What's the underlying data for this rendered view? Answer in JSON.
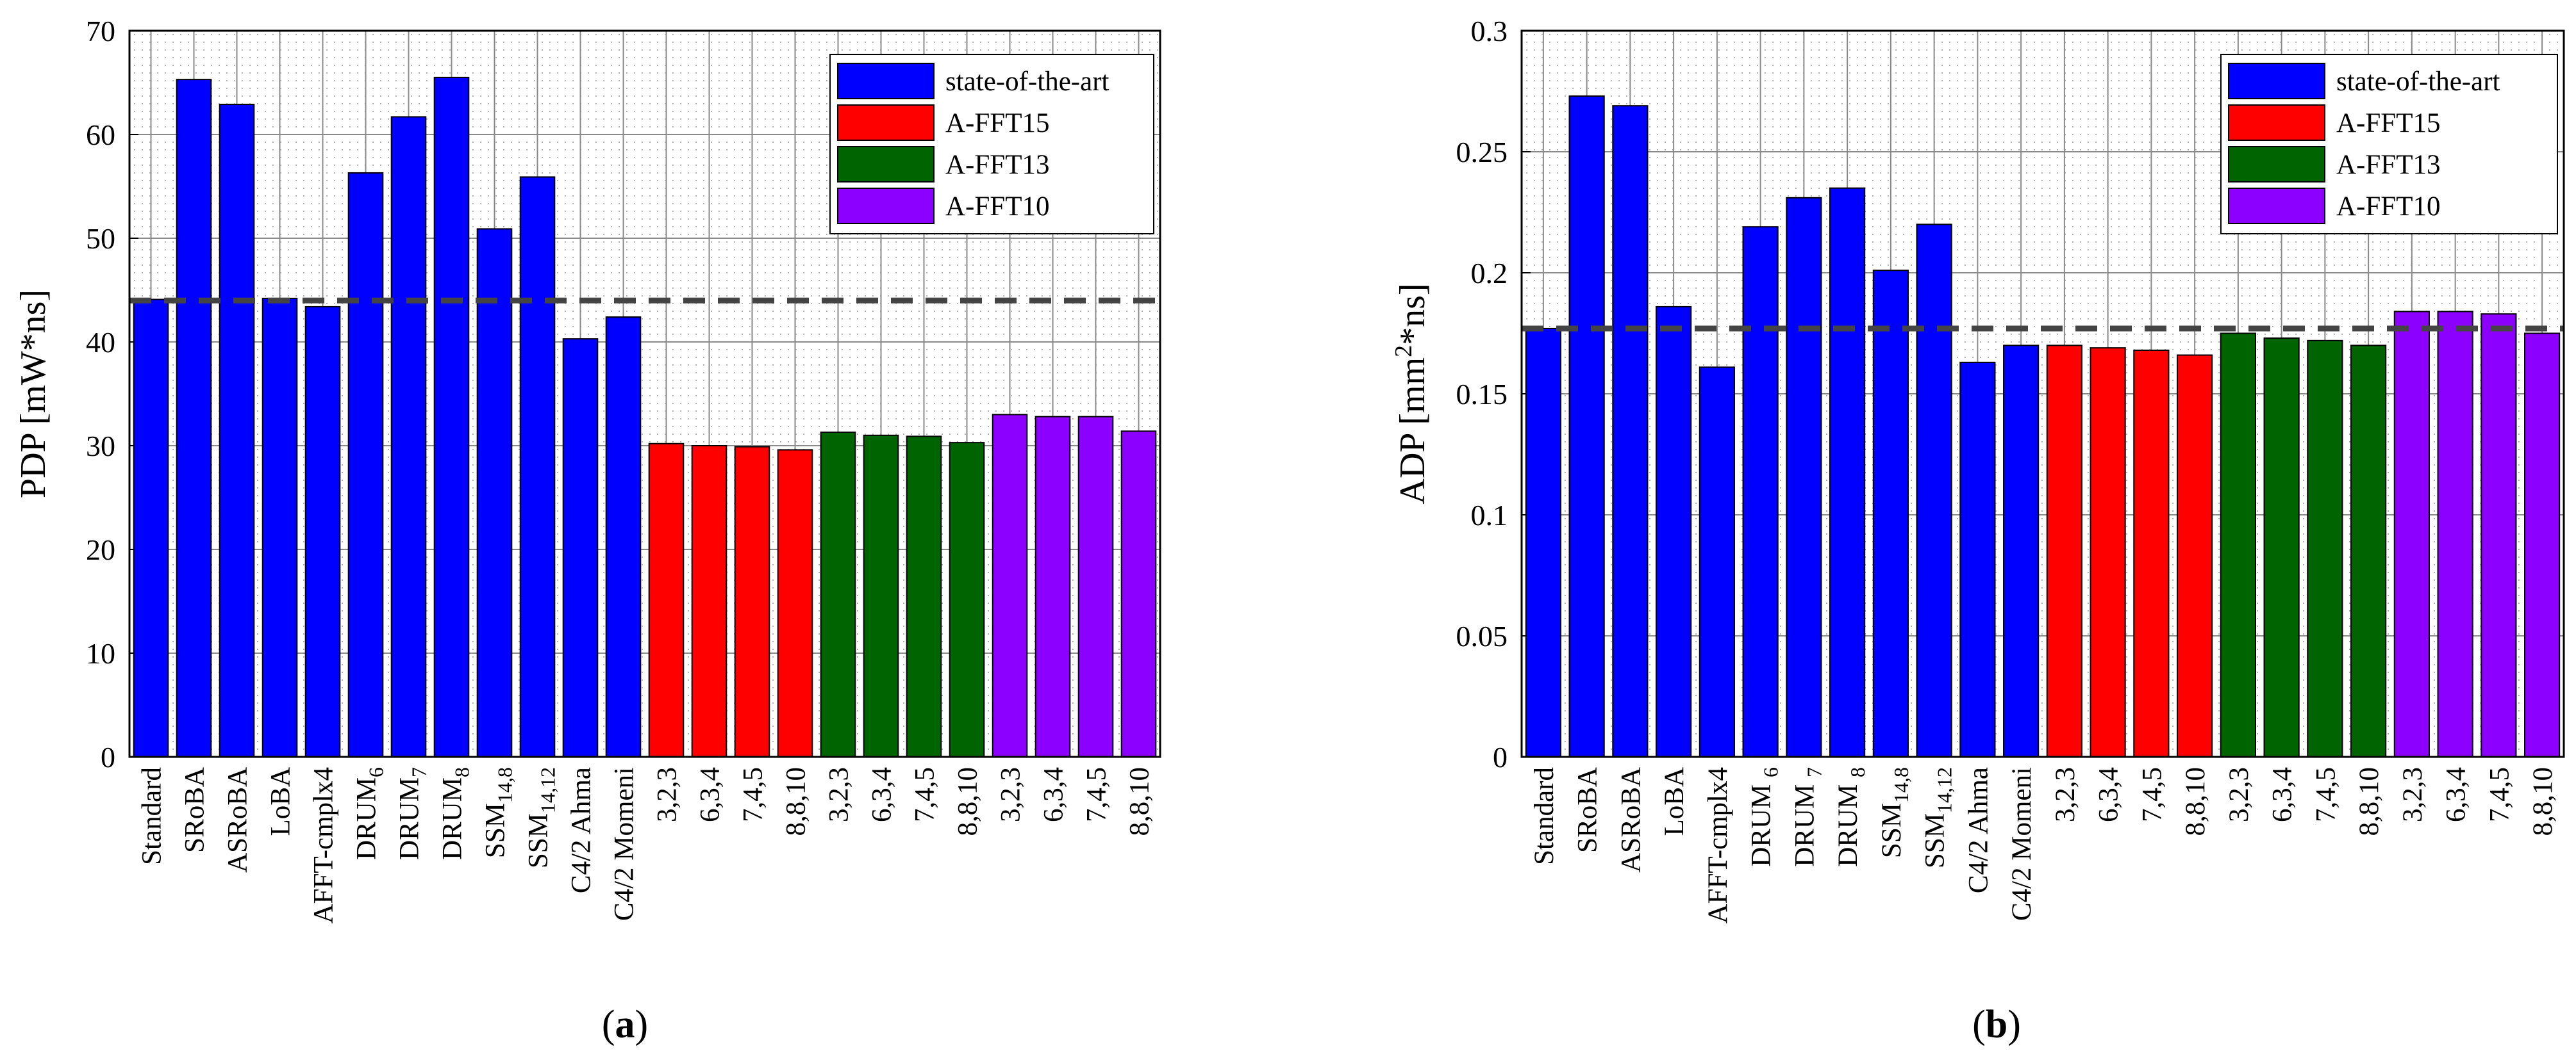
{
  "chart_data": [
    {
      "type": "bar",
      "panel_caption": {
        "open": "(",
        "letter": "a",
        "close": ")"
      },
      "ylabel": "PDP [mW*ns]",
      "ylim": [
        0,
        70
      ],
      "yticks": [
        "0",
        "10",
        "20",
        "30",
        "40",
        "50",
        "60",
        "70"
      ],
      "grid": true,
      "legend_position": "top-right",
      "reference_line": 44,
      "categories": [
        {
          "label": "Standard"
        },
        {
          "label": "SRoBA"
        },
        {
          "label": "ASRoBA"
        },
        {
          "label": "LoBA"
        },
        {
          "label": "AFFT-cmplx4"
        },
        {
          "label": "DRUM",
          "sub": "6"
        },
        {
          "label": "DRUM",
          "sub": "7"
        },
        {
          "label": "DRUM",
          "sub": "8"
        },
        {
          "label": "SSM",
          "sub": "14,8"
        },
        {
          "label": "SSM",
          "sub": "14,12"
        },
        {
          "label": "C4/2 Ahma"
        },
        {
          "label": "C4/2 Momeni"
        },
        {
          "label": "3,2,3"
        },
        {
          "label": "6,3,4"
        },
        {
          "label": "7,4,5"
        },
        {
          "label": "8,8,10"
        },
        {
          "label": "3,2,3"
        },
        {
          "label": "6,3,4"
        },
        {
          "label": "7,4,5"
        },
        {
          "label": "8,8,10"
        },
        {
          "label": "3,2,3"
        },
        {
          "label": "6,3,4"
        },
        {
          "label": "7,4,5"
        },
        {
          "label": "8,8,10"
        }
      ],
      "values": [
        44.1,
        65.3,
        62.9,
        44.2,
        43.4,
        56.3,
        61.7,
        65.5,
        50.9,
        55.9,
        40.3,
        42.4,
        30.2,
        30.0,
        29.9,
        29.6,
        31.3,
        31.0,
        30.9,
        30.3,
        33.0,
        32.8,
        32.8,
        31.4
      ],
      "groups": [
        0,
        0,
        0,
        0,
        0,
        0,
        0,
        0,
        0,
        0,
        0,
        0,
        1,
        1,
        1,
        1,
        2,
        2,
        2,
        2,
        3,
        3,
        3,
        3
      ],
      "legend": [
        {
          "name": "state-of-the-art",
          "color": "#0000ff"
        },
        {
          "name": "A-FFT15",
          "color": "#ff0000"
        },
        {
          "name": "A-FFT13",
          "color": "#006400"
        },
        {
          "name": "A-FFT10",
          "color": "#8b00ff"
        }
      ]
    },
    {
      "type": "bar",
      "panel_caption": {
        "open": "(",
        "letter": "b",
        "close": ")"
      },
      "ylabel": "ADP [mm",
      "ylabel_sup": "2",
      "ylabel_tail": "*ns]",
      "ylim": [
        0,
        0.3
      ],
      "yticks": [
        "0",
        "0.05",
        "0.1",
        "0.15",
        "0.2",
        "0.25",
        "0.3"
      ],
      "grid": true,
      "legend_position": "top-right",
      "reference_line": 0.177,
      "categories": [
        {
          "label": "Standard"
        },
        {
          "label": "SRoBA"
        },
        {
          "label": "ASRoBA"
        },
        {
          "label": "LoBA"
        },
        {
          "label": "AFFT-cmplx4"
        },
        {
          "label": "DRUM ",
          "sub": "6"
        },
        {
          "label": "DRUM ",
          "sub": "7"
        },
        {
          "label": "DRUM ",
          "sub": "8"
        },
        {
          "label": "SSM",
          "sub": "14,8"
        },
        {
          "label": "SSM",
          "sub": "14,12"
        },
        {
          "label": "C4/2 Ahma"
        },
        {
          "label": "C4/2 Momeni"
        },
        {
          "label": "3,2,3"
        },
        {
          "label": "6,3,4"
        },
        {
          "label": "7,4,5"
        },
        {
          "label": "8,8,10"
        },
        {
          "label": "3,2,3"
        },
        {
          "label": "6,3,4"
        },
        {
          "label": "7,4,5"
        },
        {
          "label": "8,8,10"
        },
        {
          "label": "3,2,3"
        },
        {
          "label": "6,3,4"
        },
        {
          "label": "7,4,5"
        },
        {
          "label": "8,8,10"
        }
      ],
      "values": [
        0.177,
        0.273,
        0.269,
        0.186,
        0.161,
        0.219,
        0.231,
        0.235,
        0.201,
        0.22,
        0.163,
        0.17,
        0.17,
        0.169,
        0.168,
        0.166,
        0.175,
        0.173,
        0.172,
        0.17,
        0.184,
        0.184,
        0.183,
        0.175
      ],
      "groups": [
        0,
        0,
        0,
        0,
        0,
        0,
        0,
        0,
        0,
        0,
        0,
        0,
        1,
        1,
        1,
        1,
        2,
        2,
        2,
        2,
        3,
        3,
        3,
        3
      ],
      "legend": [
        {
          "name": "state-of-the-art",
          "color": "#0000ff"
        },
        {
          "name": "A-FFT15",
          "color": "#ff0000"
        },
        {
          "name": "A-FFT13",
          "color": "#006400"
        },
        {
          "name": "A-FFT10",
          "color": "#8b00ff"
        }
      ]
    }
  ]
}
